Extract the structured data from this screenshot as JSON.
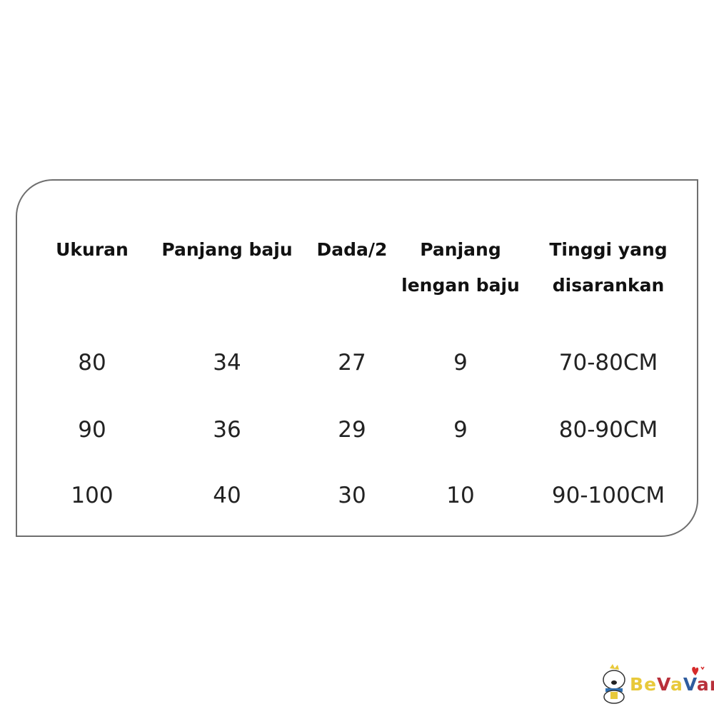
{
  "table": {
    "headers": [
      [
        "Ukuran"
      ],
      [
        "Panjang baju"
      ],
      [
        "Dada/2"
      ],
      [
        "Panjang",
        "lengan baju"
      ],
      [
        "Tinggi yang",
        "disarankan"
      ]
    ],
    "rows": [
      [
        "80",
        "34",
        "27",
        "9",
        "70-80CM"
      ],
      [
        "90",
        "36",
        "29",
        "9",
        "80-90CM"
      ],
      [
        "100",
        "40",
        "30",
        "10",
        "90-100CM"
      ]
    ]
  },
  "logo": {
    "text": "BeVaVar",
    "letter_colors": [
      "#e8c93a",
      "#e8c93a",
      "#b8303a",
      "#e8c93a",
      "#2f5c9e",
      "#b8303a",
      "#b8303a"
    ],
    "heart_color": "#d62a2a"
  }
}
